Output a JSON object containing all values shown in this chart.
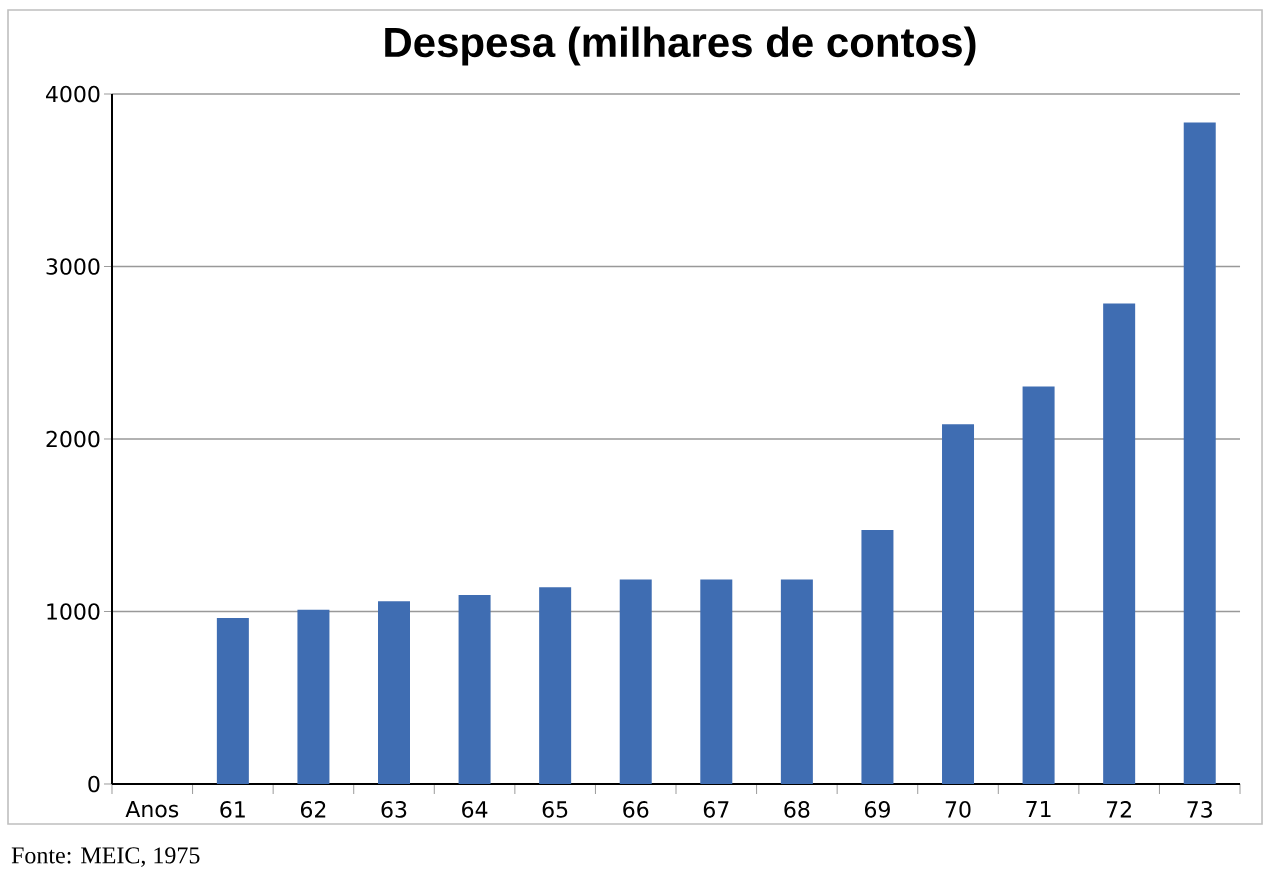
{
  "chart_data": {
    "type": "bar",
    "title": "Despesa (milhares de contos)",
    "categories": [
      "Anos",
      "61",
      "62",
      "63",
      "64",
      "65",
      "66",
      "67",
      "68",
      "69",
      "70",
      "71",
      "72",
      "73"
    ],
    "values": [
      null,
      962,
      1010,
      1060,
      1095,
      1140,
      1185,
      1185,
      1185,
      1472,
      2085,
      2305,
      2785,
      3835
    ],
    "color": "#3f6db2",
    "ylim": [
      0,
      4000
    ],
    "yticks": [
      0,
      1000,
      2000,
      3000,
      4000
    ],
    "grid": "y",
    "annotations": [
      "Fonte: MEIC, 1975"
    ]
  }
}
